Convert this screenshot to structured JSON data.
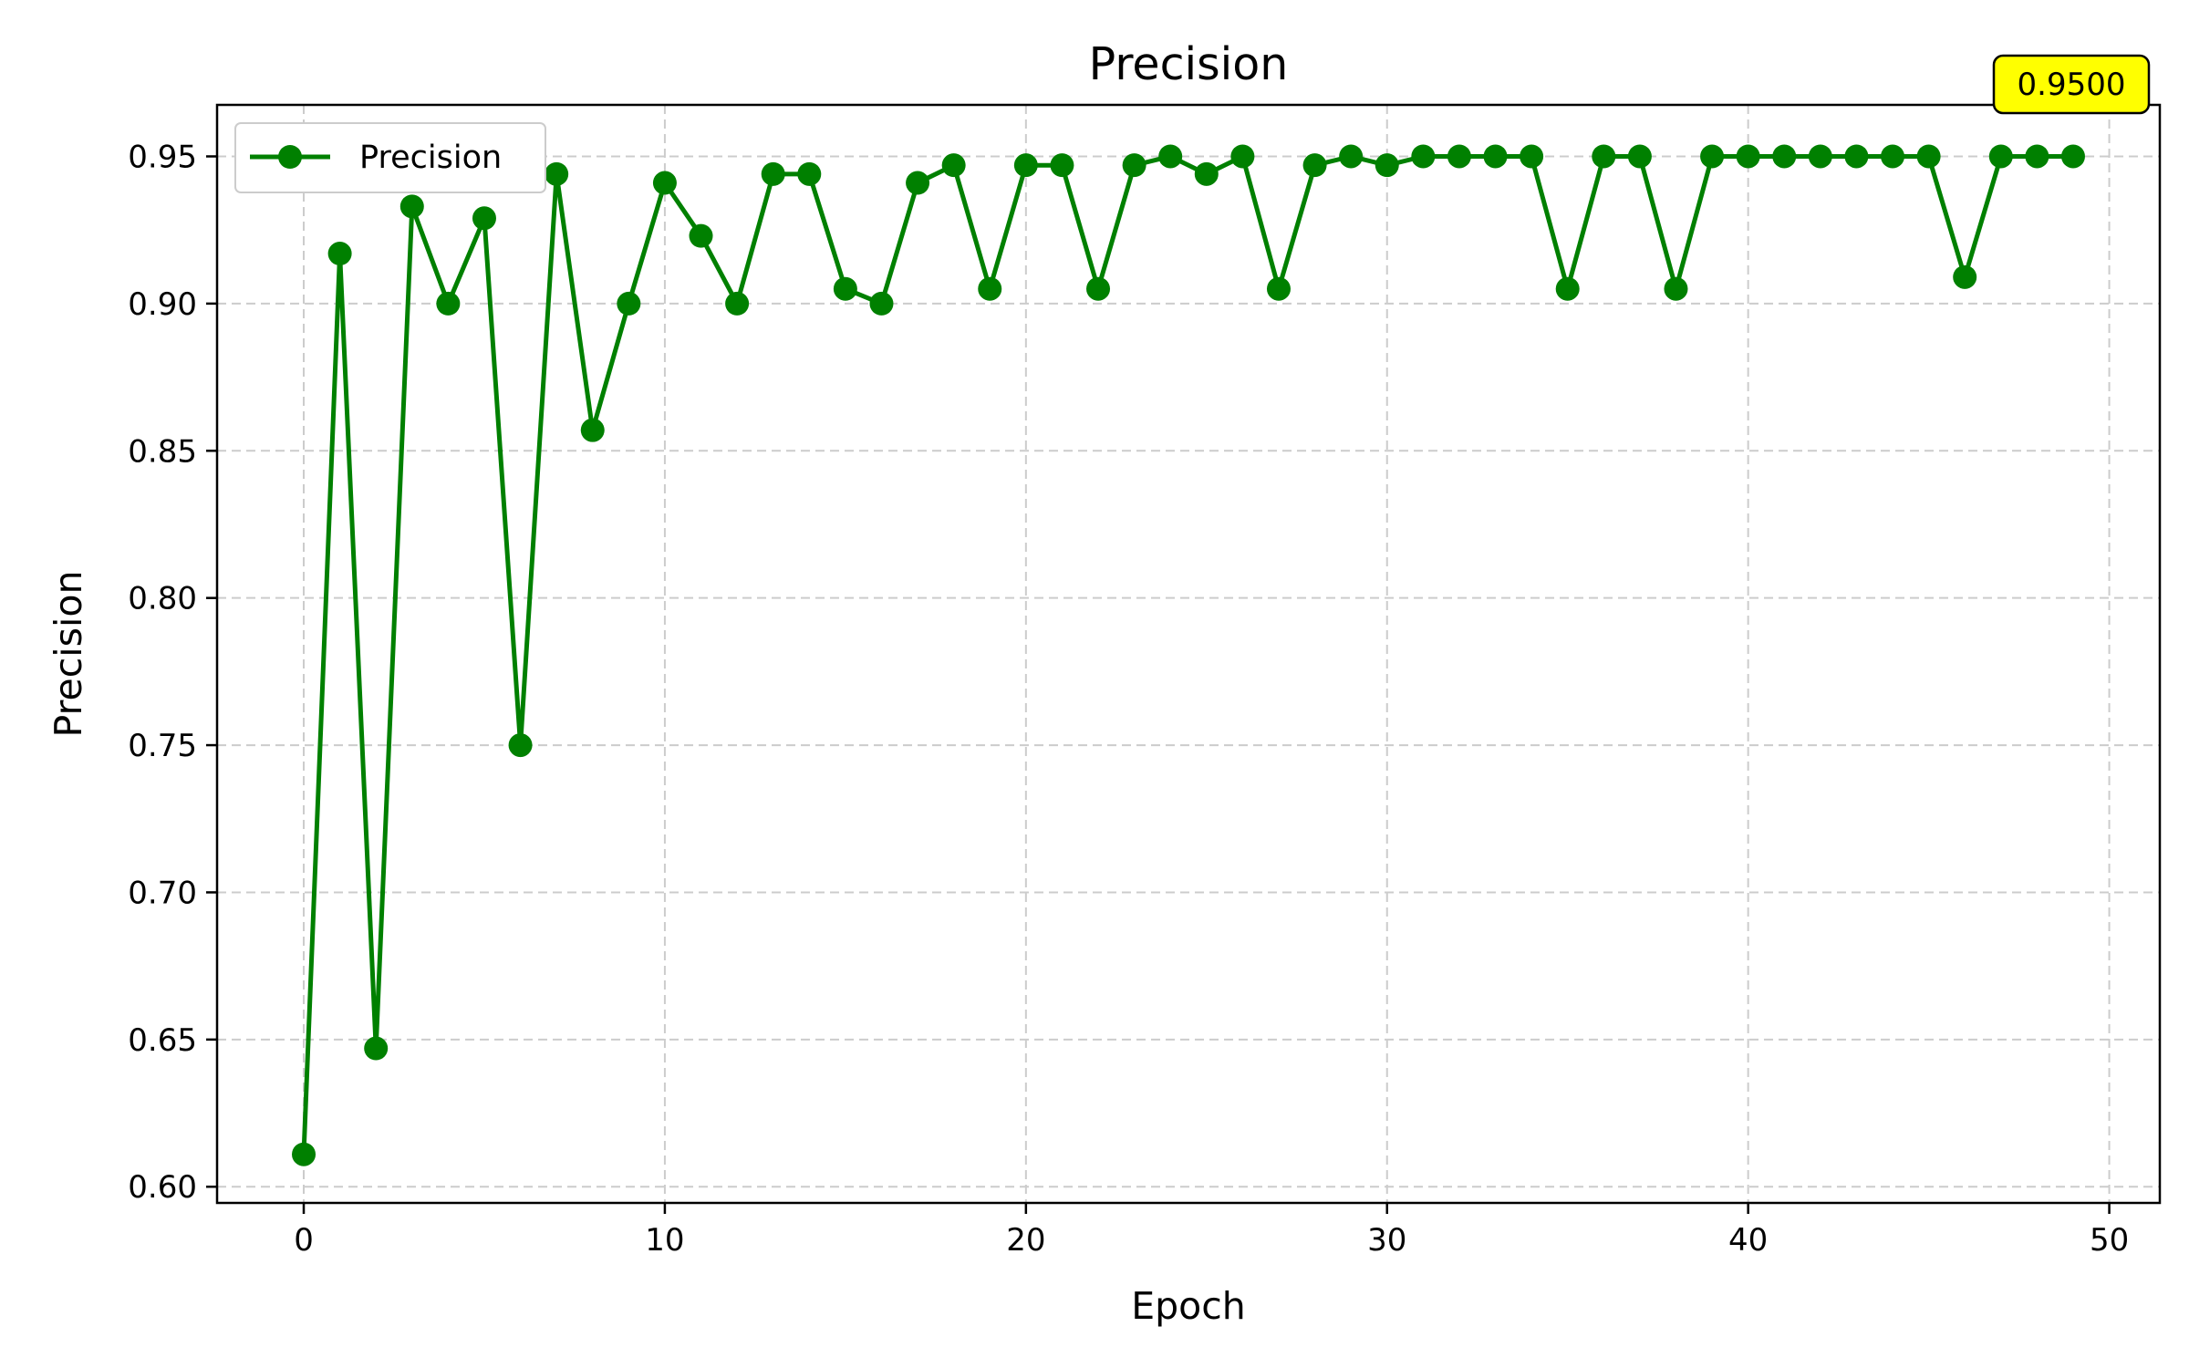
{
  "chart_data": {
    "type": "line",
    "title": "Precision",
    "xlabel": "Epoch",
    "ylabel": "Precision",
    "xlim": [
      -2.4,
      51.4
    ],
    "ylim": [
      0.5945,
      0.9675
    ],
    "xticks": [
      0,
      10,
      20,
      30,
      40,
      50
    ],
    "xtick_labels": [
      "0",
      "10",
      "20",
      "30",
      "40",
      "50"
    ],
    "yticks": [
      0.6,
      0.65,
      0.7,
      0.75,
      0.8,
      0.85,
      0.9,
      0.95
    ],
    "ytick_labels": [
      "0.60",
      "0.65",
      "0.70",
      "0.75",
      "0.80",
      "0.85",
      "0.90",
      "0.95"
    ],
    "grid": true,
    "legend_position": "top-left",
    "series": [
      {
        "name": "Precision",
        "color": "#008000",
        "marker": "circle",
        "x": [
          0,
          1,
          2,
          3,
          4,
          5,
          6,
          7,
          8,
          9,
          10,
          11,
          12,
          13,
          14,
          15,
          16,
          17,
          18,
          19,
          20,
          21,
          22,
          23,
          24,
          25,
          26,
          27,
          28,
          29,
          30,
          31,
          32,
          33,
          34,
          35,
          36,
          37,
          38,
          39,
          40,
          41,
          42,
          43,
          44,
          45,
          46,
          47,
          48,
          49
        ],
        "values": [
          0.611,
          0.917,
          0.647,
          0.933,
          0.9,
          0.929,
          0.75,
          0.944,
          0.857,
          0.9,
          0.941,
          0.923,
          0.9,
          0.944,
          0.944,
          0.905,
          0.9,
          0.941,
          0.947,
          0.905,
          0.947,
          0.947,
          0.905,
          0.947,
          0.95,
          0.944,
          0.95,
          0.905,
          0.947,
          0.95,
          0.947,
          0.95,
          0.95,
          0.95,
          0.95,
          0.905,
          0.95,
          0.95,
          0.905,
          0.95,
          0.95,
          0.95,
          0.95,
          0.95,
          0.95,
          0.95,
          0.909,
          0.95,
          0.95,
          0.95
        ]
      }
    ],
    "annotation": {
      "text": "0.9500",
      "background": "#ffff00"
    }
  }
}
